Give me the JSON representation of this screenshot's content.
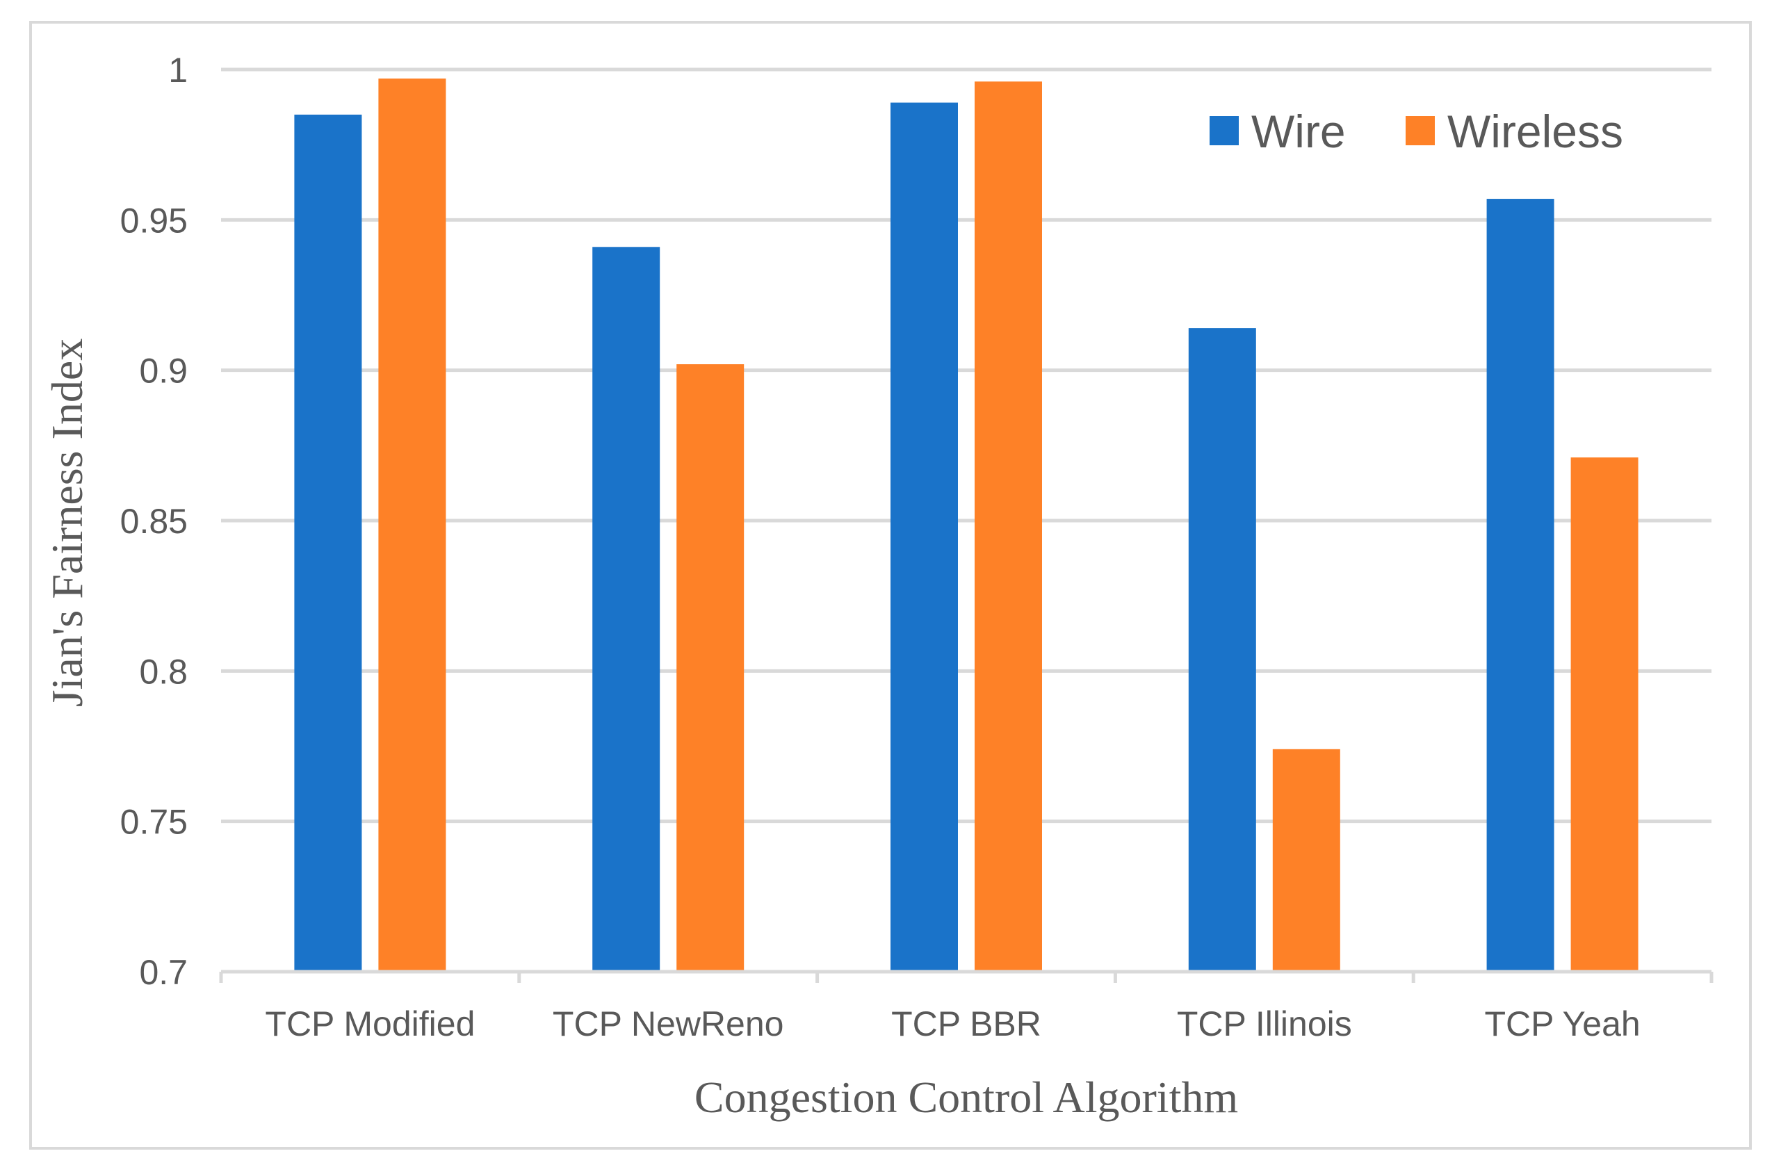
{
  "chart_data": {
    "type": "bar",
    "title": "",
    "xlabel": "Congestion Control Algorithm",
    "ylabel": "Jian's Fairness Index",
    "ylim": [
      0.7,
      1.0
    ],
    "yticks": [
      0.7,
      0.75,
      0.8,
      0.85,
      0.9,
      0.95,
      1.0
    ],
    "ytick_labels": [
      "0.7",
      "0.75",
      "0.8",
      "0.85",
      "0.9",
      "0.95",
      "1"
    ],
    "grid": true,
    "legend_position": "top-right",
    "categories": [
      "TCP Modified",
      "TCP NewReno",
      "TCP BBR",
      "TCP Illinois",
      "TCP Yeah"
    ],
    "series": [
      {
        "name": "Wire",
        "color": "#1a73c9",
        "values": [
          0.985,
          0.941,
          0.989,
          0.914,
          0.957
        ]
      },
      {
        "name": "Wireless",
        "color": "#fe8127",
        "values": [
          0.997,
          0.902,
          0.996,
          0.774,
          0.871
        ]
      }
    ]
  }
}
